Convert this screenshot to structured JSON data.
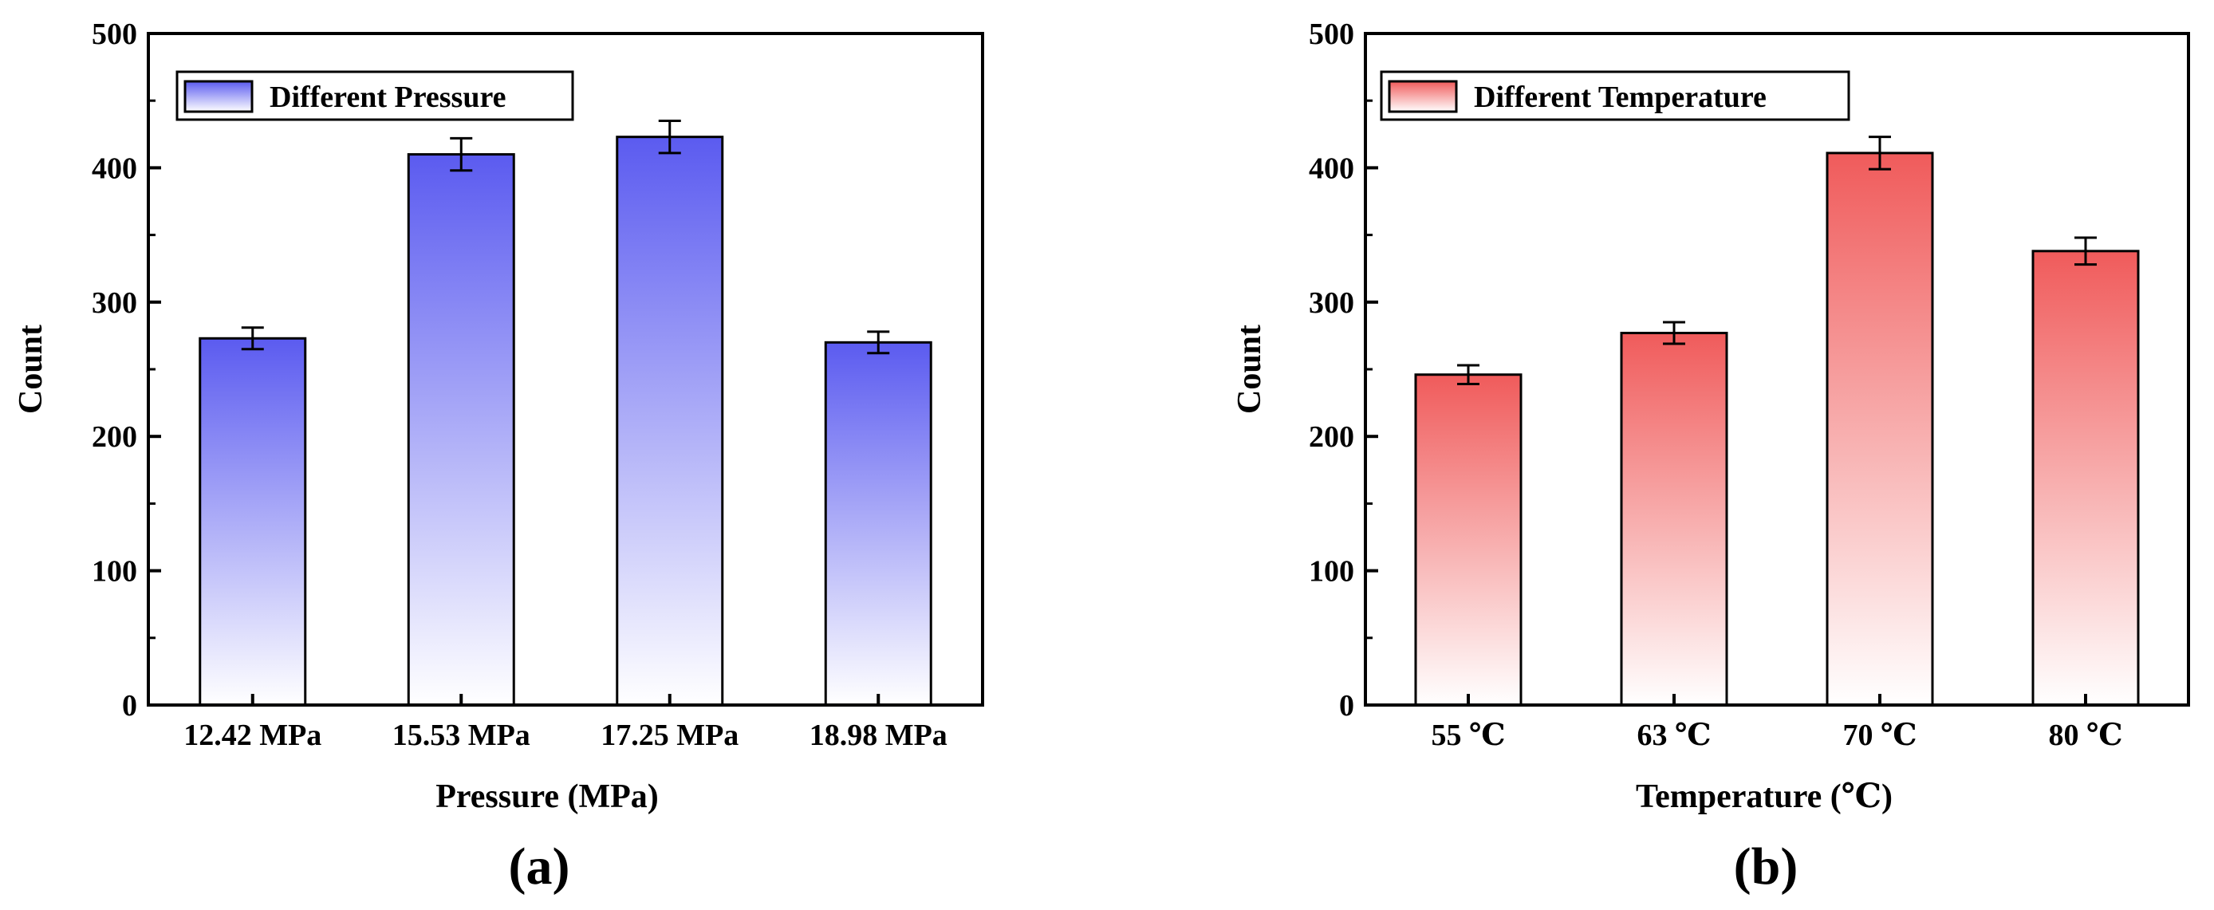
{
  "chart_data": [
    {
      "type": "bar",
      "panel_label": "(a)",
      "categories": [
        "12.42 MPa",
        "15.53 MPa",
        "17.25 MPa",
        "18.98 MPa"
      ],
      "values": [
        273,
        410,
        423,
        270
      ],
      "errors": [
        8,
        12,
        12,
        8
      ],
      "series_name": "Different Pressure",
      "xlabel": "Pressure (MPa)",
      "ylabel": "Count",
      "ylim": [
        0,
        500
      ],
      "yticks": [
        0,
        100,
        200,
        300,
        400,
        500
      ],
      "yticklabels": [
        "0",
        "100",
        "200",
        "300",
        "400",
        "500"
      ],
      "legend_position": "top-left",
      "color": "#5b5bf0"
    },
    {
      "type": "bar",
      "panel_label": "(b)",
      "categories": [
        "55 ℃",
        "63 ℃",
        "70 ℃",
        "80 ℃"
      ],
      "values": [
        246,
        277,
        411,
        338
      ],
      "errors": [
        7,
        8,
        12,
        10
      ],
      "series_name": "Different Temperature",
      "xlabel": "Temperature (℃)",
      "ylabel": "Count",
      "ylim": [
        0,
        500
      ],
      "yticks": [
        0,
        100,
        200,
        300,
        400,
        500
      ],
      "yticklabels": [
        "0",
        "100",
        "200",
        "300",
        "400",
        "500"
      ],
      "legend_position": "top-left",
      "color": "#f05b5b"
    }
  ]
}
